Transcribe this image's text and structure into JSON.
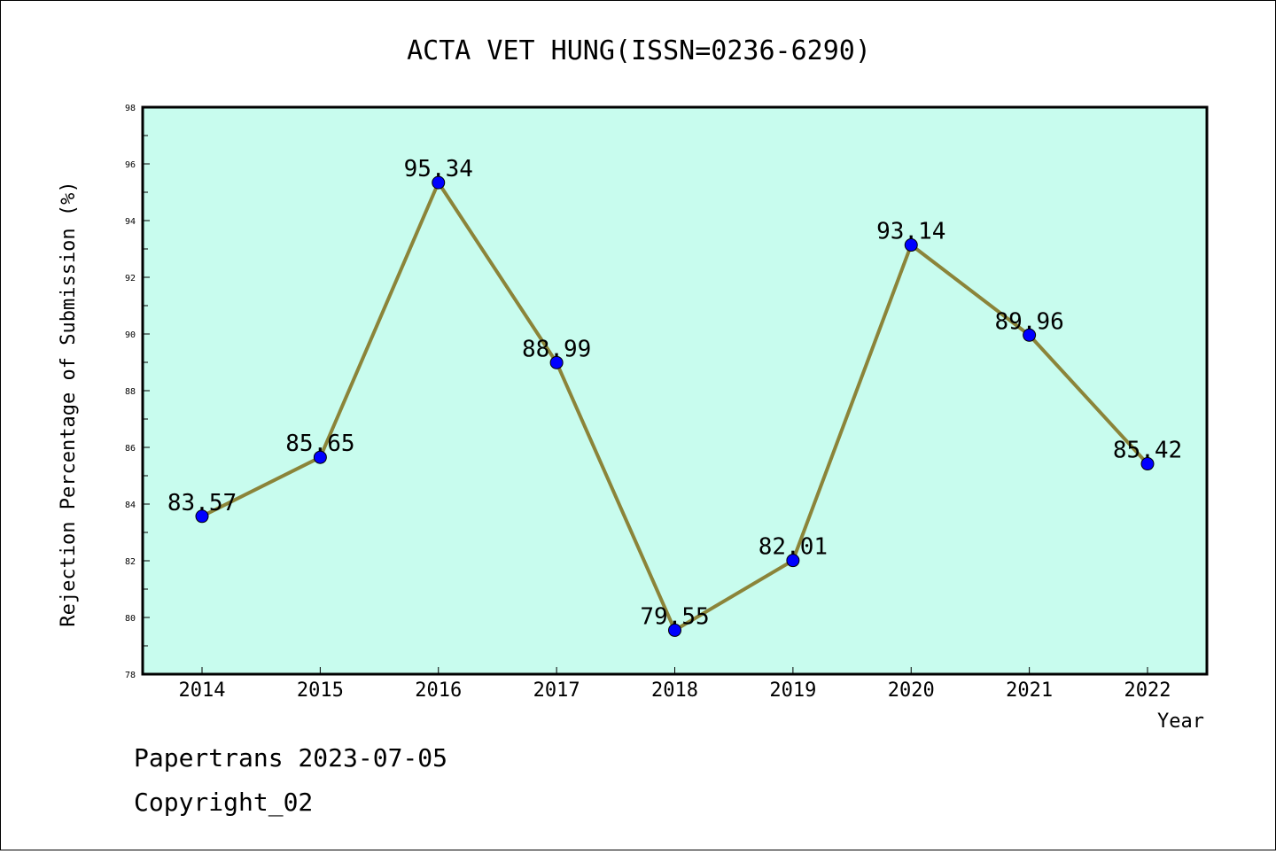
{
  "chart_data": {
    "type": "line",
    "title": "ACTA VET HUNG(ISSN=0236-6290)",
    "xlabel": "Year",
    "ylabel": "Rejection Percentage of Submission (%)",
    "categories": [
      "2014",
      "2015",
      "2016",
      "2017",
      "2018",
      "2019",
      "2020",
      "2021",
      "2022"
    ],
    "series": [
      {
        "values": [
          83.57,
          85.65,
          95.34,
          88.99,
          79.55,
          82.01,
          93.14,
          89.96,
          85.42
        ],
        "labels": [
          "83.57",
          "85.65",
          "95.34",
          "88.99",
          "79.55",
          "82.01",
          "93.14",
          "89.96",
          "85.42"
        ],
        "line_color": "#8b8439",
        "marker_color": "#0000ff"
      }
    ],
    "ylim": [
      78,
      98
    ],
    "yticks": [
      "78",
      "80",
      "82",
      "84",
      "86",
      "88",
      "90",
      "92",
      "94",
      "96",
      "98"
    ],
    "grid": false,
    "plot_background": "#c8fcee"
  },
  "footer": {
    "line1": "Papertrans 2023-07-05",
    "line2": "Copyright_02"
  }
}
